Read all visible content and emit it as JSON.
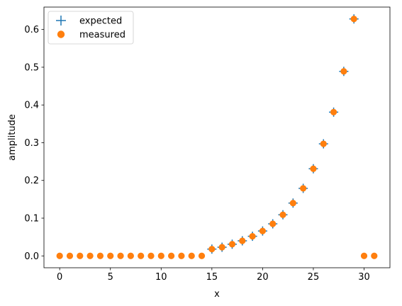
{
  "chart_data": {
    "type": "scatter",
    "xlabel": "x",
    "ylabel": "amplitude",
    "xlim": [
      -1.55,
      32.55
    ],
    "ylim": [
      -0.0314,
      0.6594
    ],
    "x_ticks": [
      0,
      5,
      10,
      15,
      20,
      25,
      30
    ],
    "y_ticks": [
      0.0,
      0.1,
      0.2,
      0.3,
      0.4,
      0.5,
      0.6
    ],
    "x_tick_labels": [
      "0",
      "5",
      "10",
      "15",
      "20",
      "25",
      "30"
    ],
    "y_tick_labels": [
      "0.0",
      "0.1",
      "0.2",
      "0.3",
      "0.4",
      "0.5",
      "0.6"
    ],
    "grid": false,
    "legend_position": "top-left",
    "series": [
      {
        "name": "expected",
        "marker": "plus",
        "color": "#1f77b4",
        "x": [
          15,
          16,
          17,
          18,
          19,
          20,
          21,
          22,
          23,
          24,
          25,
          26,
          27,
          28,
          29
        ],
        "y": [
          0.018,
          0.023,
          0.031,
          0.04,
          0.052,
          0.066,
          0.085,
          0.109,
          0.14,
          0.179,
          0.231,
          0.297,
          0.381,
          0.489,
          0.628
        ]
      },
      {
        "name": "measured",
        "marker": "circle",
        "color": "#ff7f0e",
        "x": [
          0,
          1,
          2,
          3,
          4,
          5,
          6,
          7,
          8,
          9,
          10,
          11,
          12,
          13,
          14,
          15,
          16,
          17,
          18,
          19,
          20,
          21,
          22,
          23,
          24,
          25,
          26,
          27,
          28,
          29,
          30,
          31
        ],
        "y": [
          0,
          0,
          0,
          0,
          0,
          0,
          0,
          0,
          0,
          0,
          0,
          0,
          0,
          0,
          0,
          0.018,
          0.023,
          0.031,
          0.04,
          0.052,
          0.066,
          0.085,
          0.109,
          0.14,
          0.179,
          0.231,
          0.297,
          0.381,
          0.489,
          0.628,
          0,
          0
        ]
      }
    ]
  }
}
